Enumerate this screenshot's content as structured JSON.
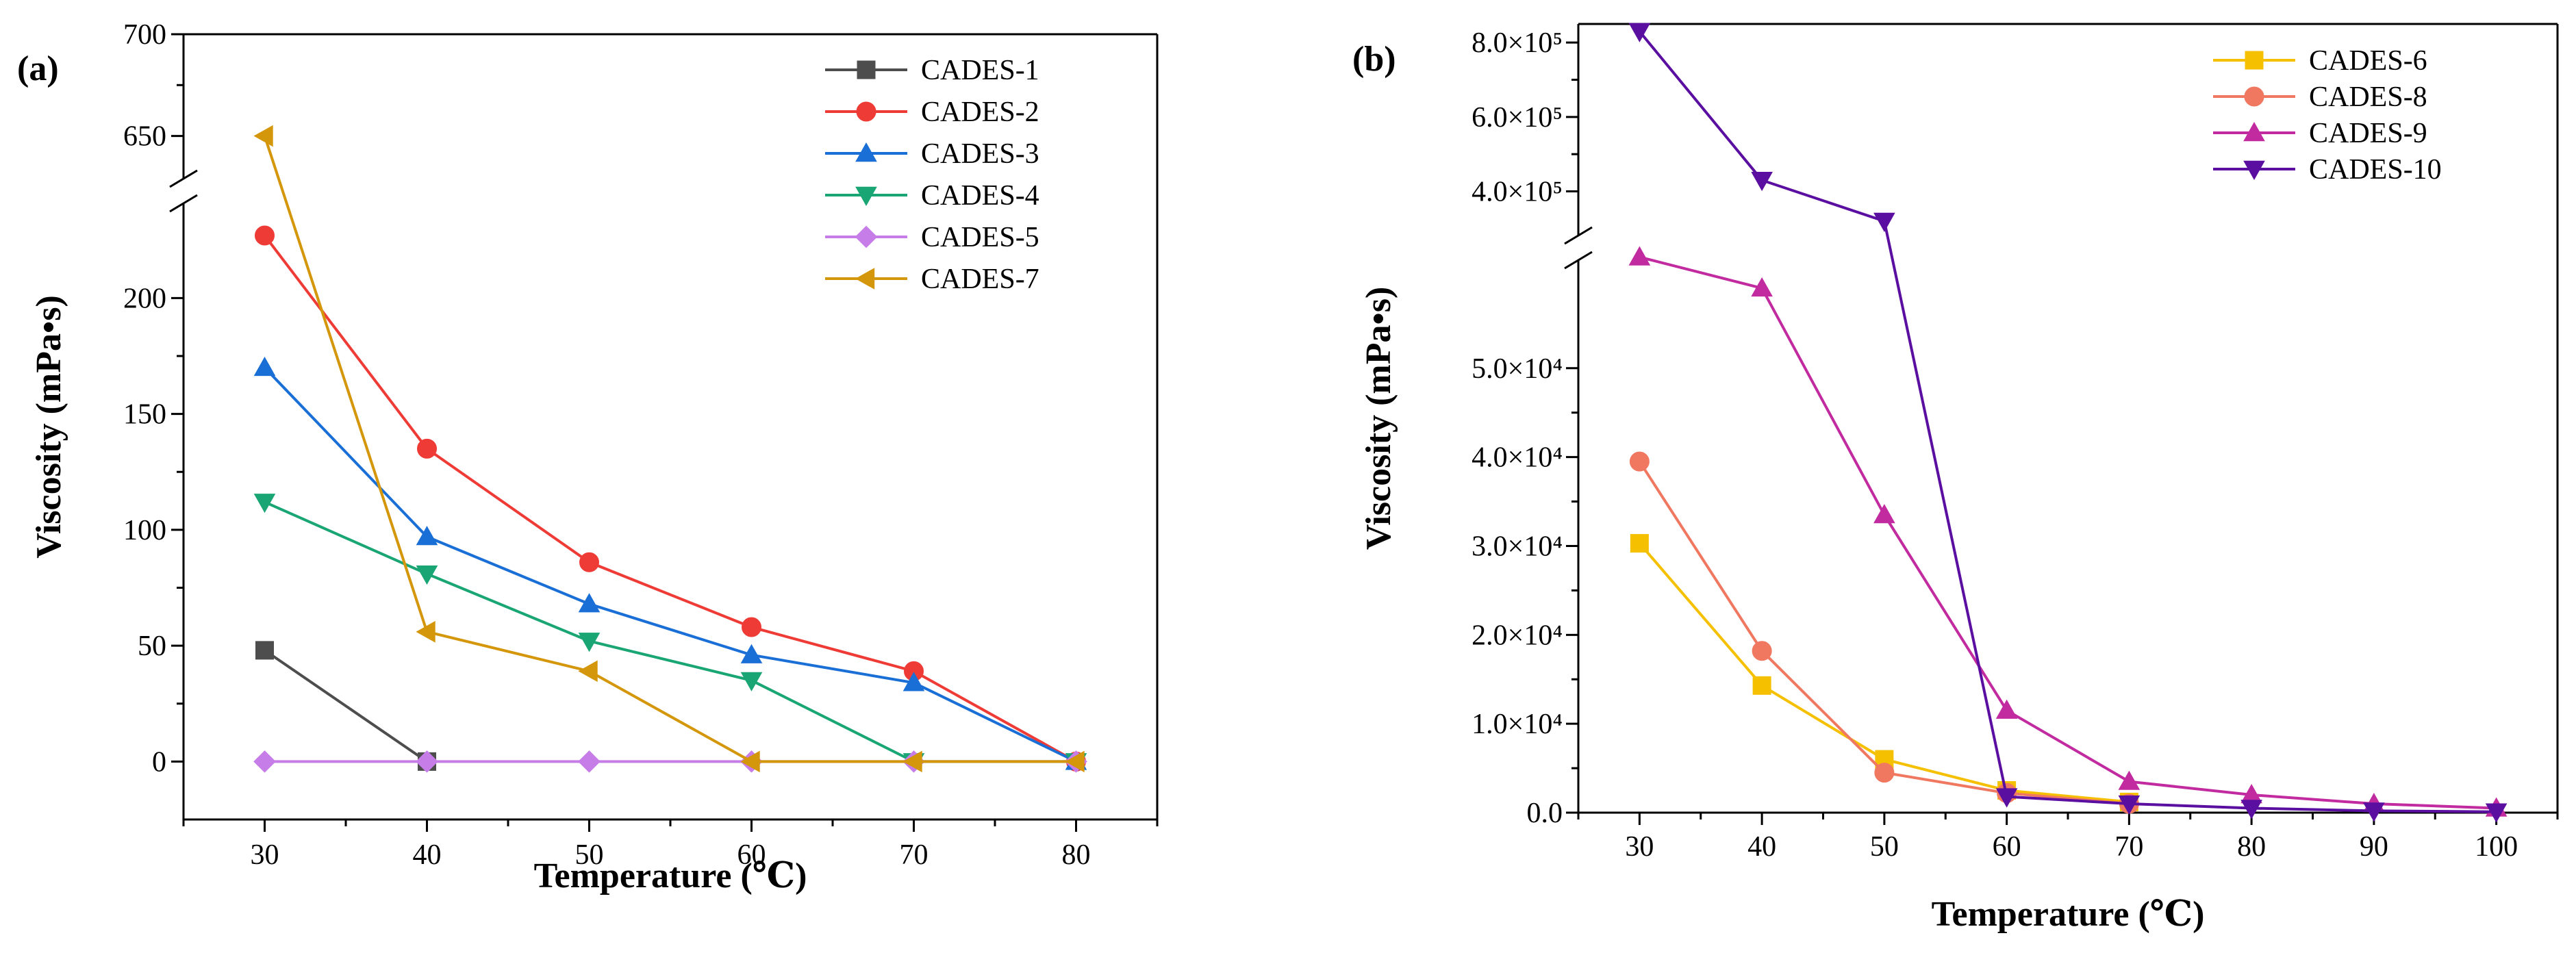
{
  "chart_data": [
    {
      "type": "line",
      "panel_label": "(a)",
      "xlabel": "Temperature (℃)",
      "ylabel": "Viscosity (mPa•s)",
      "x": [
        30,
        40,
        50,
        60,
        70,
        80
      ],
      "x_ticks": [
        "30",
        "40",
        "50",
        "60",
        "70",
        "80"
      ],
      "xlim": [
        25,
        85
      ],
      "y_axis_break": true,
      "y_lower": {
        "range": [
          -25,
          240
        ],
        "ticks": [
          0,
          50,
          100,
          150,
          200
        ],
        "tick_labels": [
          "0",
          "50",
          "100",
          "150",
          "200"
        ]
      },
      "y_upper": {
        "range": [
          630,
          700
        ],
        "ticks": [
          650,
          700
        ],
        "tick_labels": [
          "650",
          "700"
        ]
      },
      "legend_position": "top-right",
      "series": [
        {
          "name": "CADES-1",
          "color": "#4d4d4d",
          "marker": "square",
          "values": [
            48,
            0,
            null,
            null,
            null,
            null
          ]
        },
        {
          "name": "CADES-2",
          "color": "#ef3b36",
          "marker": "circle",
          "values": [
            227,
            135,
            86,
            58,
            39,
            0
          ]
        },
        {
          "name": "CADES-3",
          "color": "#1a6fd6",
          "marker": "triangle-up",
          "values": [
            170,
            97,
            68,
            46,
            34,
            0
          ]
        },
        {
          "name": "CADES-4",
          "color": "#1aa674",
          "marker": "triangle-down",
          "values": [
            112,
            81,
            52,
            35,
            0,
            0
          ]
        },
        {
          "name": "CADES-5",
          "color": "#c77de8",
          "marker": "diamond",
          "values": [
            0,
            0,
            0,
            0,
            0,
            0
          ]
        },
        {
          "name": "CADES-7",
          "color": "#d4960a",
          "marker": "triangle-left",
          "values": [
            650,
            56,
            39,
            0,
            0,
            0
          ]
        }
      ]
    },
    {
      "type": "line",
      "panel_label": "(b)",
      "xlabel": "Temperature (℃)",
      "ylabel": "Viscosity (mPa•s)",
      "x": [
        30,
        40,
        50,
        60,
        70,
        80,
        90,
        100
      ],
      "x_ticks": [
        "30",
        "40",
        "50",
        "60",
        "70",
        "80",
        "90",
        "100"
      ],
      "xlim": [
        25,
        105
      ],
      "y_axis_break": true,
      "y_lower": {
        "range": [
          0,
          62000
        ],
        "ticks": [
          0,
          10000,
          20000,
          30000,
          40000,
          50000
        ],
        "tick_labels": [
          "0.0",
          "1.0×10⁴",
          "2.0×10⁴",
          "3.0×10⁴",
          "4.0×10⁴",
          "5.0×10⁴"
        ]
      },
      "y_upper": {
        "range": [
          285000,
          850000
        ],
        "ticks": [
          400000,
          600000,
          800000
        ],
        "tick_labels": [
          "4.0×10⁵",
          "6.0×10⁵",
          "8.0×10⁵"
        ]
      },
      "legend_position": "top-right",
      "series": [
        {
          "name": "CADES-6",
          "color": "#f5c000",
          "marker": "square",
          "values": [
            30300,
            14300,
            6000,
            2500,
            1200,
            null,
            null,
            null
          ]
        },
        {
          "name": "CADES-8",
          "color": "#f07860",
          "marker": "circle",
          "values": [
            39500,
            18200,
            4500,
            2200,
            1000,
            null,
            null,
            null
          ]
        },
        {
          "name": "CADES-9",
          "color": "#c22aa0",
          "marker": "triangle-up",
          "values": [
            62500,
            59000,
            33500,
            11500,
            3500,
            2000,
            1000,
            500
          ]
        },
        {
          "name": "CADES-10",
          "color": "#5a0fa0",
          "marker": "triangle-down",
          "values": [
            830000,
            430000,
            320000,
            1800,
            1000,
            500,
            200,
            100
          ]
        }
      ]
    }
  ]
}
